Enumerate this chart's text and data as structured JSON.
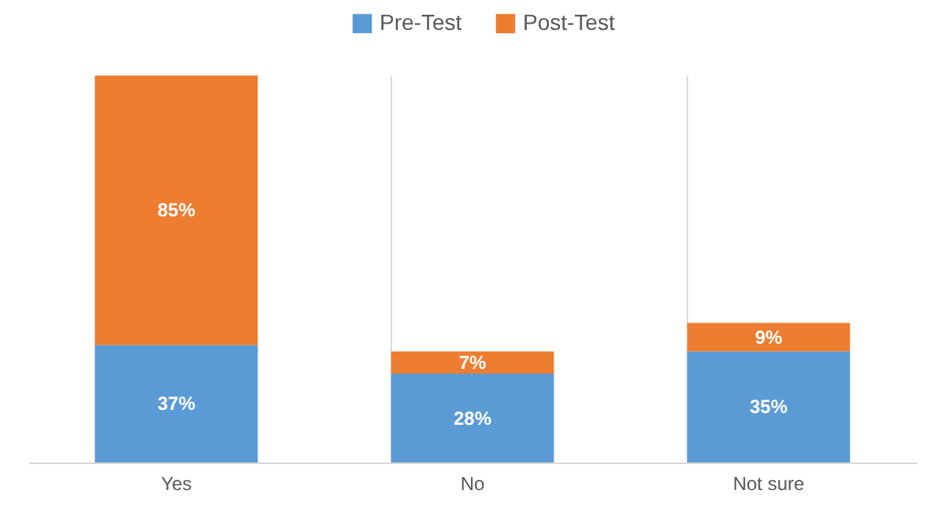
{
  "chart_data": {
    "type": "bar",
    "stacked": true,
    "tick_labels": "x",
    "categories": [
      "Yes",
      "No",
      "Not sure"
    ],
    "series": [
      {
        "name": "Pre-Test",
        "color": "#5b9bd5",
        "values": [
          37,
          28,
          35
        ],
        "value_labels": [
          "37%",
          "28%",
          "35%"
        ]
      },
      {
        "name": "Post-Test",
        "color": "#ed7d31",
        "values": [
          85,
          7,
          9
        ],
        "value_labels": [
          "85%",
          "7%",
          "9%"
        ]
      }
    ],
    "grid": "x",
    "legend": "top"
  }
}
